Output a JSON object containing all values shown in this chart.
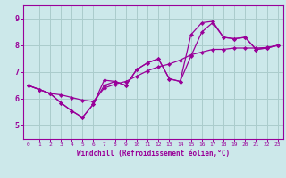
{
  "xlabel": "Windchill (Refroidissement éolien,°C)",
  "bg_color": "#cce8ea",
  "grid_color": "#aacccc",
  "line_color": "#990099",
  "xlim": [
    -0.5,
    23.5
  ],
  "ylim": [
    4.5,
    9.5
  ],
  "xticks": [
    0,
    1,
    2,
    3,
    4,
    5,
    6,
    7,
    8,
    9,
    10,
    11,
    12,
    13,
    14,
    15,
    16,
    17,
    18,
    19,
    20,
    21,
    22,
    23
  ],
  "yticks": [
    5,
    6,
    7,
    8,
    9
  ],
  "line1_x": [
    0,
    1,
    2,
    3,
    4,
    5,
    6,
    7,
    8,
    9,
    10,
    11,
    12,
    13,
    14,
    15,
    16,
    17,
    18,
    19,
    20,
    21,
    22,
    23
  ],
  "line1_y": [
    6.5,
    6.35,
    6.2,
    6.15,
    6.05,
    5.95,
    5.9,
    6.4,
    6.55,
    6.65,
    6.85,
    7.05,
    7.2,
    7.3,
    7.45,
    7.65,
    7.75,
    7.85,
    7.85,
    7.9,
    7.9,
    7.9,
    7.92,
    8.0
  ],
  "line2_x": [
    0,
    1,
    2,
    3,
    4,
    5,
    6,
    7,
    8,
    9,
    10,
    11,
    12,
    13,
    14,
    15,
    16,
    17,
    18,
    19,
    20,
    21,
    22,
    23
  ],
  "line2_y": [
    6.5,
    6.35,
    6.2,
    5.85,
    5.55,
    5.3,
    5.8,
    6.5,
    6.65,
    6.5,
    7.1,
    7.35,
    7.5,
    6.75,
    6.65,
    7.6,
    8.5,
    8.85,
    8.3,
    8.25,
    8.3,
    7.85,
    7.9,
    8.0
  ],
  "line3_x": [
    0,
    1,
    2,
    3,
    4,
    5,
    6,
    7,
    8,
    9,
    10,
    11,
    12,
    13,
    14,
    15,
    16,
    17,
    18,
    19,
    20,
    21,
    22,
    23
  ],
  "line3_y": [
    6.5,
    6.35,
    6.2,
    5.85,
    5.55,
    5.3,
    5.8,
    6.7,
    6.65,
    6.5,
    7.1,
    7.35,
    7.5,
    6.75,
    6.65,
    8.4,
    8.85,
    8.9,
    8.3,
    8.25,
    8.3,
    7.85,
    7.9,
    8.0
  ]
}
